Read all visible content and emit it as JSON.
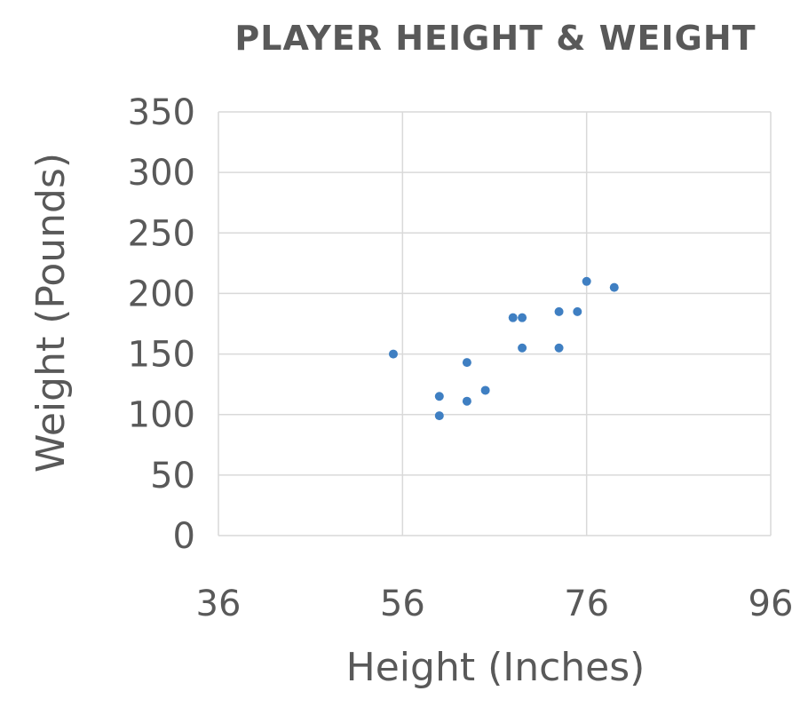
{
  "chart_data": {
    "type": "scatter",
    "title": "PLAYER HEIGHT & WEIGHT",
    "xlabel": "Height (Inches)",
    "ylabel": "Weight (Pounds)",
    "xlim": [
      36,
      96
    ],
    "ylim": [
      0,
      350
    ],
    "xticks": [
      36,
      56,
      76,
      96
    ],
    "yticks": [
      0,
      50,
      100,
      150,
      200,
      250,
      300,
      350
    ],
    "grid": true,
    "point_color": "#3f7fc2",
    "series": [
      {
        "points": [
          {
            "x": 55,
            "y": 150
          },
          {
            "x": 60,
            "y": 115
          },
          {
            "x": 60,
            "y": 99
          },
          {
            "x": 63,
            "y": 143
          },
          {
            "x": 63,
            "y": 111
          },
          {
            "x": 65,
            "y": 120
          },
          {
            "x": 68,
            "y": 180
          },
          {
            "x": 69,
            "y": 180
          },
          {
            "x": 69,
            "y": 155
          },
          {
            "x": 73,
            "y": 185
          },
          {
            "x": 73,
            "y": 155
          },
          {
            "x": 75,
            "y": 185
          },
          {
            "x": 76,
            "y": 210
          },
          {
            "x": 79,
            "y": 205
          }
        ]
      }
    ]
  }
}
